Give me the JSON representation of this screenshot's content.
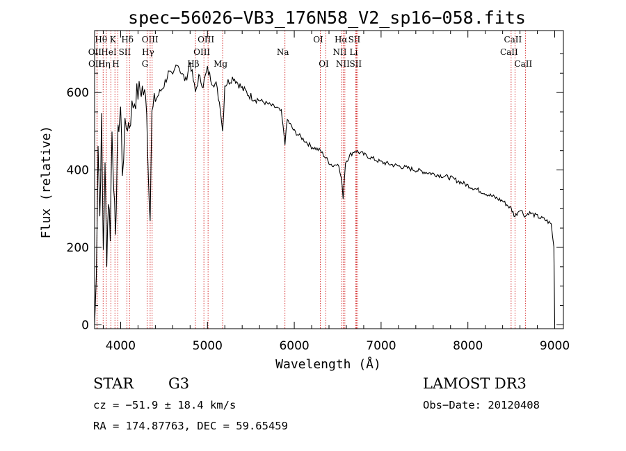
{
  "chart_data": {
    "type": "line",
    "title": "spec−56026−VB3_176N58_V2_sp16−058.fits",
    "xlabel": "Wavelength (Å)",
    "ylabel": "Flux (relative)",
    "xlim": [
      3700,
      9100
    ],
    "ylim": [
      -10,
      760
    ],
    "x_ticks": [
      4000,
      5000,
      6000,
      7000,
      8000,
      9000
    ],
    "y_ticks": [
      0,
      200,
      400,
      600
    ],
    "series": [
      {
        "name": "flux",
        "x": [
          3700,
          3720,
          3740,
          3760,
          3780,
          3800,
          3820,
          3840,
          3860,
          3880,
          3900,
          3920,
          3940,
          3960,
          3980,
          4000,
          4020,
          4050,
          4080,
          4100,
          4130,
          4160,
          4200,
          4250,
          4300,
          4320,
          4340,
          4360,
          4400,
          4450,
          4500,
          4550,
          4600,
          4650,
          4700,
          4750,
          4800,
          4861,
          4900,
          4950,
          5000,
          5050,
          5100,
          5150,
          5175,
          5200,
          5300,
          5400,
          5500,
          5600,
          5700,
          5800,
          5850,
          5893,
          5920,
          6000,
          6100,
          6200,
          6300,
          6400,
          6450,
          6500,
          6540,
          6563,
          6590,
          6650,
          6700,
          6800,
          6900,
          7000,
          7200,
          7400,
          7600,
          7800,
          8000,
          8200,
          8400,
          8498,
          8542,
          8600,
          8662,
          8700,
          8800,
          8900,
          8960,
          8990,
          9000
        ],
        "y": [
          0,
          120,
          480,
          280,
          520,
          200,
          400,
          180,
          330,
          240,
          500,
          380,
          200,
          450,
          520,
          560,
          400,
          500,
          520,
          520,
          560,
          580,
          600,
          610,
          570,
          380,
          300,
          540,
          580,
          600,
          620,
          650,
          640,
          680,
          650,
          630,
          680,
          600,
          640,
          620,
          660,
          630,
          620,
          560,
          500,
          620,
          640,
          610,
          590,
          580,
          570,
          560,
          550,
          470,
          530,
          500,
          480,
          460,
          450,
          420,
          410,
          420,
          380,
          330,
          420,
          440,
          450,
          440,
          430,
          420,
          410,
          400,
          390,
          380,
          360,
          340,
          320,
          300,
          280,
          300,
          280,
          290,
          280,
          270,
          260,
          200,
          0
        ]
      }
    ],
    "line_markers": [
      {
        "label": "Hθ",
        "wavelength": 3798,
        "row": 1
      },
      {
        "label": "OII",
        "wavelength": 3727,
        "row": 2
      },
      {
        "label": "OII",
        "wavelength": 3729,
        "row": 3
      },
      {
        "label": "HeI",
        "wavelength": 3889,
        "row": 2
      },
      {
        "label": "Hη",
        "wavelength": 3835,
        "row": 3
      },
      {
        "label": "K",
        "wavelength": 3934,
        "row": 1
      },
      {
        "label": "H",
        "wavelength": 3968,
        "row": 3
      },
      {
        "label": "SII",
        "wavelength": 4072,
        "row": 2
      },
      {
        "label": "Hδ",
        "wavelength": 4102,
        "row": 1
      },
      {
        "label": "OIII",
        "wavelength": 4363,
        "row": 1
      },
      {
        "label": "Hγ",
        "wavelength": 4340,
        "row": 2
      },
      {
        "label": "G",
        "wavelength": 4305,
        "row": 3
      },
      {
        "label": "Hβ",
        "wavelength": 4861,
        "row": 3
      },
      {
        "label": "OIII",
        "wavelength": 5007,
        "row": 1
      },
      {
        "label": "OIII",
        "wavelength": 4959,
        "row": 2
      },
      {
        "label": "Mg",
        "wavelength": 5175,
        "row": 3
      },
      {
        "label": "Na",
        "wavelength": 5893,
        "row": 2
      },
      {
        "label": "OI",
        "wavelength": 6300,
        "row": 1
      },
      {
        "label": "OI",
        "wavelength": 6364,
        "row": 3
      },
      {
        "label": "Hα",
        "wavelength": 6563,
        "row": 1
      },
      {
        "label": "NII",
        "wavelength": 6548,
        "row": 2
      },
      {
        "label": "NII",
        "wavelength": 6583,
        "row": 3
      },
      {
        "label": "SII",
        "wavelength": 6716,
        "row": 1
      },
      {
        "label": "Li",
        "wavelength": 6708,
        "row": 2
      },
      {
        "label": "SII",
        "wavelength": 6731,
        "row": 3
      },
      {
        "label": "CaII",
        "wavelength": 8542,
        "row": 1
      },
      {
        "label": "CaII",
        "wavelength": 8498,
        "row": 2
      },
      {
        "label": "CaII",
        "wavelength": 8662,
        "row": 3
      }
    ]
  },
  "info": {
    "object_class": "STAR",
    "subclass": "G3",
    "survey": "LAMOST DR3",
    "redshift": "cz = −51.9 ± 18.4 km/s",
    "obs_date": "Obs−Date: 20120408",
    "coords": "RA = 174.87763, DEC =  59.65459"
  },
  "colors": {
    "spectrum": "#000000",
    "marker_line": "#cc0000",
    "axis": "#000000"
  }
}
